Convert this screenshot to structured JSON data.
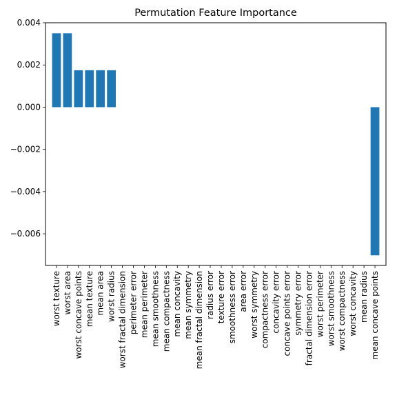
{
  "chart_data": {
    "type": "bar",
    "title": "Permutation Feature Importance",
    "xlabel": "",
    "ylabel": "",
    "categories": [
      "worst texture",
      "worst area",
      "worst concave points",
      "mean texture",
      "mean area",
      "worst radius",
      "worst fractal dimension",
      "perimeter error",
      "mean perimeter",
      "mean smoothness",
      "mean compactness",
      "mean concavity",
      "mean symmetry",
      "mean fractal dimension",
      "radius error",
      "texture error",
      "smoothness error",
      "area error",
      "worst symmetry",
      "compactness error",
      "concavity error",
      "concave points error",
      "symmetry error",
      "fractal dimension error",
      "worst perimeter",
      "worst smoothness",
      "worst compactness",
      "worst concavity",
      "mean radius",
      "mean concave points"
    ],
    "values": [
      0.0035,
      0.0035,
      0.00175,
      0.00175,
      0.00175,
      0.00175,
      0,
      0,
      0,
      0,
      0,
      0,
      0,
      0,
      0,
      0,
      0,
      0,
      0,
      0,
      0,
      0,
      0,
      0,
      0,
      0,
      0,
      0,
      0,
      -0.00702
    ],
    "ylim": [
      -0.0075,
      0.004
    ],
    "yticks": [
      0.004,
      0.002,
      0.0,
      -0.002,
      -0.004,
      -0.006
    ],
    "ytick_labels": [
      "0.004",
      "0.002",
      "0.000",
      "−0.002",
      "−0.004",
      "−0.006"
    ],
    "bar_color": "#1f77b4",
    "grid": false,
    "legend": "none"
  }
}
